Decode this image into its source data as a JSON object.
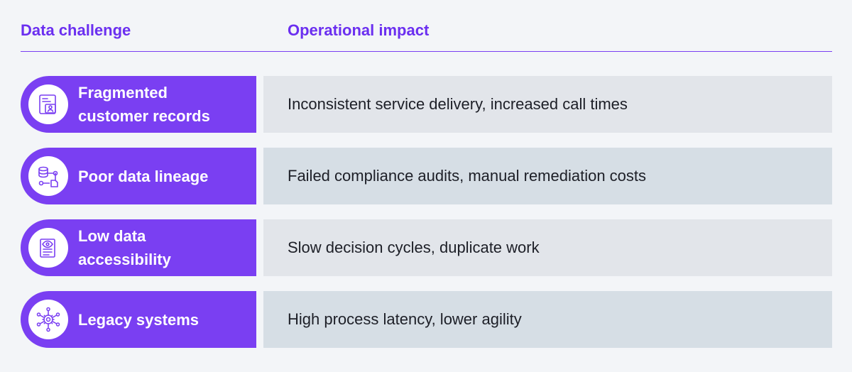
{
  "header": {
    "col1": "Data challenge",
    "col2": "Operational impact"
  },
  "colors": {
    "accent": "#7a3ff2",
    "heading": "#6b2ff0",
    "row_shade_a": "#e2e5ea",
    "row_shade_b": "#d6dee5",
    "background": "#f3f5f8"
  },
  "rows": [
    {
      "icon": "customer-record-icon",
      "challenge": "Fragmented\ncustomer records",
      "impact": "Inconsistent service delivery, increased call times"
    },
    {
      "icon": "data-lineage-icon",
      "challenge": "Poor data lineage",
      "impact": "Failed compliance audits, manual remediation costs"
    },
    {
      "icon": "document-eye-icon",
      "challenge": "Low data\naccessibility",
      "impact": "Slow decision cycles, duplicate work"
    },
    {
      "icon": "network-gear-icon",
      "challenge": "Legacy systems",
      "impact": "High process latency, lower agility"
    }
  ]
}
